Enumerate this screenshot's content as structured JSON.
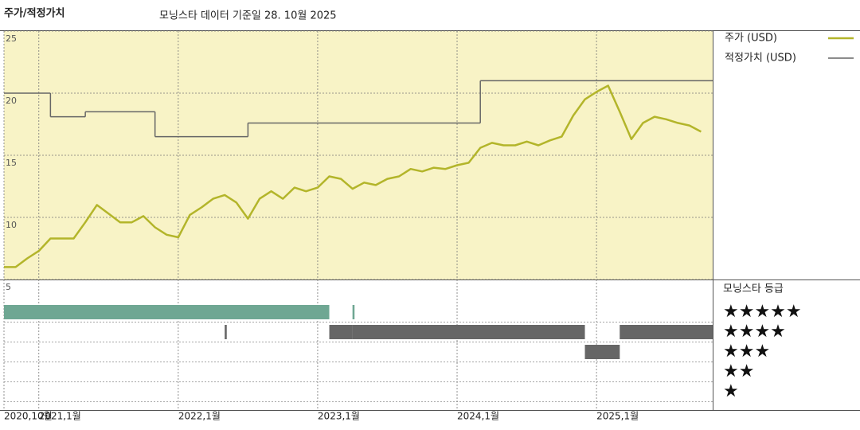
{
  "chart_data": {
    "type": "line",
    "title": "주가/적정가치",
    "subtitle": "모닝스타 데이터 기준일 28. 10월 2025",
    "xlim": [
      "2020-10",
      "2025-11"
    ],
    "xticks": [
      {
        "value": "2020-10",
        "label": "2020,10월"
      },
      {
        "value": "2021-01",
        "label": "2021,1월"
      },
      {
        "value": "2022-01",
        "label": "2022,1월"
      },
      {
        "value": "2023-01",
        "label": "2023,1월"
      },
      {
        "value": "2024-01",
        "label": "2024,1월"
      },
      {
        "value": "2025-01",
        "label": "2025,1월"
      }
    ],
    "ylim": [
      5,
      25
    ],
    "yticks": [
      25,
      20,
      15,
      10,
      5
    ],
    "grid": true,
    "series": [
      {
        "name": "주가 (USD)",
        "color": "#b3b52a",
        "x": [
          "2020-10",
          "2020-11",
          "2020-12",
          "2021-01",
          "2021-02",
          "2021-03",
          "2021-04",
          "2021-05",
          "2021-06",
          "2021-07",
          "2021-08",
          "2021-09",
          "2021-10",
          "2021-11",
          "2021-12",
          "2022-01",
          "2022-02",
          "2022-03",
          "2022-04",
          "2022-05",
          "2022-06",
          "2022-07",
          "2022-08",
          "2022-09",
          "2022-10",
          "2022-11",
          "2022-12",
          "2023-01",
          "2023-02",
          "2023-03",
          "2023-04",
          "2023-05",
          "2023-06",
          "2023-07",
          "2023-08",
          "2023-09",
          "2023-10",
          "2023-11",
          "2023-12",
          "2024-01",
          "2024-02",
          "2024-03",
          "2024-04",
          "2024-05",
          "2024-06",
          "2024-07",
          "2024-08",
          "2024-09",
          "2024-10",
          "2024-11",
          "2024-12",
          "2025-01",
          "2025-02",
          "2025-03",
          "2025-04",
          "2025-05",
          "2025-06",
          "2025-07",
          "2025-08",
          "2025-09",
          "2025-10"
        ],
        "values": [
          6.0,
          6.0,
          6.7,
          7.3,
          8.3,
          8.3,
          8.3,
          9.6,
          11.0,
          10.3,
          9.6,
          9.6,
          10.1,
          9.2,
          8.6,
          8.4,
          10.2,
          10.8,
          11.5,
          11.8,
          11.2,
          9.9,
          11.5,
          12.1,
          11.5,
          12.4,
          12.1,
          12.4,
          13.3,
          13.1,
          12.3,
          12.8,
          12.6,
          13.1,
          13.3,
          13.9,
          13.7,
          14.0,
          13.9,
          14.2,
          14.4,
          15.6,
          16.0,
          15.8,
          15.8,
          16.1,
          15.8,
          16.2,
          16.5,
          18.2,
          19.5,
          20.1,
          20.6,
          18.5,
          16.3,
          17.6,
          18.1,
          17.9,
          17.6,
          17.4,
          16.9
        ]
      },
      {
        "name": "적정가치 (USD)",
        "color": "#666666",
        "drawstyle": "steps-post",
        "x": [
          "2020-10",
          "2021-02",
          "2021-05",
          "2021-11",
          "2022-07",
          "2024-03"
        ],
        "values": [
          20.0,
          18.1,
          18.5,
          16.5,
          17.6,
          21.0
        ]
      }
    ],
    "ratings": {
      "title": "모닝스타 등급",
      "levels": [
        5,
        4,
        3,
        2,
        1
      ],
      "labels": [
        "★★★★★",
        "★★★★",
        "★★★",
        "★★",
        "★"
      ],
      "colors": {
        "5": "#3f8a6f",
        "other": "#333333"
      },
      "periods": [
        {
          "start": "2020-10",
          "end": "2023-02",
          "stars": 5
        },
        {
          "start": "2022-05",
          "end": "2022-05",
          "stars": 4
        },
        {
          "start": "2023-02",
          "end": "2023-04",
          "stars": 4
        },
        {
          "start": "2023-04",
          "end": "2023-04",
          "stars": 5
        },
        {
          "start": "2023-04",
          "end": "2024-12",
          "stars": 4
        },
        {
          "start": "2024-12",
          "end": "2025-03",
          "stars": 3
        },
        {
          "start": "2025-03",
          "end": "2025-11",
          "stars": 4
        }
      ]
    }
  }
}
